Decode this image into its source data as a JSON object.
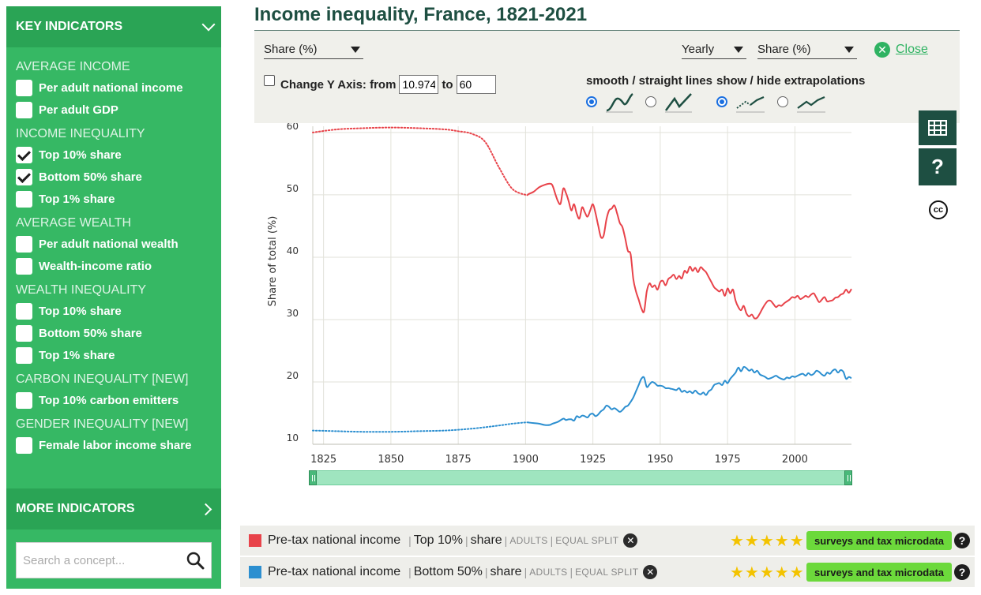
{
  "sidebar": {
    "header": "KEY INDICATORS",
    "sections": [
      {
        "title": "AVERAGE INCOME",
        "items": [
          {
            "label": "Per adult national income",
            "checked": false
          },
          {
            "label": "Per adult GDP",
            "checked": false
          }
        ]
      },
      {
        "title": "INCOME INEQUALITY",
        "items": [
          {
            "label": "Top 10% share",
            "checked": true
          },
          {
            "label": "Bottom 50% share",
            "checked": true
          },
          {
            "label": "Top 1% share",
            "checked": false
          }
        ]
      },
      {
        "title": "AVERAGE WEALTH",
        "items": [
          {
            "label": "Per adult national wealth",
            "checked": false
          },
          {
            "label": "Wealth-income ratio",
            "checked": false
          }
        ]
      },
      {
        "title": "WEALTH INEQUALITY",
        "items": [
          {
            "label": "Top 10% share",
            "checked": false
          },
          {
            "label": "Bottom 50% share",
            "checked": false
          },
          {
            "label": "Top 1% share",
            "checked": false
          }
        ]
      },
      {
        "title": "CARBON INEQUALITY [NEW]",
        "items": [
          {
            "label": "Top 10% carbon emitters",
            "checked": false
          }
        ]
      },
      {
        "title": "GENDER INEQUALITY [NEW]",
        "items": [
          {
            "label": "Female labor income share",
            "checked": false
          }
        ]
      }
    ],
    "more": "MORE INDICATORS",
    "search_placeholder": "Search a concept..."
  },
  "title": "Income inequality, France, 1821-2021",
  "controls": {
    "unit_select": "Share (%)",
    "frequency_select": "Yearly",
    "unit_select_2": "Share (%)",
    "close_label": "Close",
    "change_y_label": "Change Y Axis: from",
    "y_from": "10.974",
    "to_label": "to",
    "y_to": "60",
    "smooth_label": "smooth / straight lines",
    "extrap_label": "show / hide extrapolations",
    "smooth_selected": "smooth",
    "extrap_selected": "show"
  },
  "chart_data": {
    "type": "line",
    "title": "",
    "ylabel": "Share of total (%)",
    "xlabel": "",
    "xlim": [
      1821,
      2021
    ],
    "ylim": [
      10,
      61
    ],
    "x_ticks": [
      1825,
      1850,
      1875,
      1900,
      1925,
      1950,
      1975,
      2000
    ],
    "y_ticks": [
      10,
      20,
      30,
      40,
      50,
      60
    ],
    "grid": true,
    "series": [
      {
        "name": "Top 10%",
        "color": "#e8434a",
        "extrapolated": [
          [
            1821,
            60.0
          ],
          [
            1830,
            60.5
          ],
          [
            1840,
            60.7
          ],
          [
            1850,
            60.8
          ],
          [
            1860,
            60.7
          ],
          [
            1870,
            60.5
          ],
          [
            1875,
            60.2
          ],
          [
            1880,
            59.8
          ],
          [
            1885,
            58.5
          ],
          [
            1890,
            54.5
          ],
          [
            1895,
            51.0
          ],
          [
            1900,
            50.0
          ],
          [
            1901,
            50.1
          ]
        ],
        "points": [
          [
            1901,
            50.1
          ],
          [
            1903,
            50.5
          ],
          [
            1905,
            51.2
          ],
          [
            1907,
            51.6
          ],
          [
            1909,
            51.8
          ],
          [
            1910,
            51.5
          ],
          [
            1911,
            50.2
          ],
          [
            1912,
            49.0
          ],
          [
            1913,
            48.6
          ],
          [
            1914,
            51.0
          ],
          [
            1915,
            50.3
          ],
          [
            1916,
            49.0
          ],
          [
            1917,
            47.5
          ],
          [
            1918,
            48.5
          ],
          [
            1919,
            47.0
          ],
          [
            1920,
            46.2
          ],
          [
            1921,
            48.0
          ],
          [
            1922,
            47.2
          ],
          [
            1923,
            46.5
          ],
          [
            1924,
            47.5
          ],
          [
            1925,
            48.5
          ],
          [
            1926,
            47.0
          ],
          [
            1927,
            45.0
          ],
          [
            1928,
            43.2
          ],
          [
            1929,
            43.5
          ],
          [
            1930,
            46.0
          ],
          [
            1931,
            47.5
          ],
          [
            1932,
            47.8
          ],
          [
            1933,
            48.3
          ],
          [
            1934,
            47.0
          ],
          [
            1935,
            45.5
          ],
          [
            1936,
            44.8
          ],
          [
            1937,
            43.0
          ],
          [
            1938,
            41.0
          ],
          [
            1939,
            40.5
          ],
          [
            1940,
            36.5
          ],
          [
            1941,
            34.5
          ],
          [
            1942,
            33.2
          ],
          [
            1943,
            31.8
          ],
          [
            1944,
            31.3
          ],
          [
            1945,
            34.5
          ],
          [
            1946,
            35.8
          ],
          [
            1947,
            35.2
          ],
          [
            1948,
            35.5
          ],
          [
            1949,
            34.8
          ],
          [
            1950,
            36.0
          ],
          [
            1951,
            36.2
          ],
          [
            1952,
            35.5
          ],
          [
            1953,
            36.5
          ],
          [
            1954,
            36.8
          ],
          [
            1955,
            37.2
          ],
          [
            1956,
            36.5
          ],
          [
            1957,
            37.0
          ],
          [
            1958,
            36.6
          ],
          [
            1959,
            37.8
          ],
          [
            1960,
            37.5
          ],
          [
            1961,
            38.5
          ],
          [
            1962,
            37.8
          ],
          [
            1963,
            38.3
          ],
          [
            1964,
            37.6
          ],
          [
            1965,
            38.4
          ],
          [
            1966,
            38.0
          ],
          [
            1967,
            37.6
          ],
          [
            1968,
            36.8
          ],
          [
            1969,
            36.0
          ],
          [
            1970,
            35.2
          ],
          [
            1971,
            34.8
          ],
          [
            1972,
            34.5
          ],
          [
            1973,
            34.8
          ],
          [
            1974,
            33.8
          ],
          [
            1975,
            35.0
          ],
          [
            1976,
            34.2
          ],
          [
            1977,
            34.8
          ],
          [
            1978,
            33.0
          ],
          [
            1979,
            32.0
          ],
          [
            1980,
            31.5
          ],
          [
            1981,
            32.2
          ],
          [
            1982,
            31.0
          ],
          [
            1983,
            30.5
          ],
          [
            1984,
            30.8
          ],
          [
            1985,
            30.2
          ],
          [
            1986,
            30.3
          ],
          [
            1987,
            31.0
          ],
          [
            1988,
            31.8
          ],
          [
            1989,
            32.5
          ],
          [
            1990,
            33.0
          ],
          [
            1991,
            33.0
          ],
          [
            1992,
            32.5
          ],
          [
            1993,
            32.0
          ],
          [
            1994,
            32.3
          ],
          [
            1995,
            32.2
          ],
          [
            1996,
            32.6
          ],
          [
            1997,
            32.9
          ],
          [
            1998,
            33.2
          ],
          [
            1999,
            33.6
          ],
          [
            2000,
            33.5
          ],
          [
            2001,
            33.8
          ],
          [
            2002,
            33.3
          ],
          [
            2003,
            33.5
          ],
          [
            2004,
            33.8
          ],
          [
            2005,
            33.6
          ],
          [
            2006,
            34.0
          ],
          [
            2007,
            34.2
          ],
          [
            2008,
            33.5
          ],
          [
            2009,
            32.8
          ],
          [
            2010,
            33.2
          ],
          [
            2011,
            33.6
          ],
          [
            2012,
            32.9
          ],
          [
            2013,
            33.0
          ],
          [
            2014,
            33.1
          ],
          [
            2015,
            33.5
          ],
          [
            2016,
            33.6
          ],
          [
            2017,
            34.0
          ],
          [
            2018,
            34.2
          ],
          [
            2019,
            34.8
          ],
          [
            2020,
            34.3
          ],
          [
            2021,
            34.9
          ]
        ]
      },
      {
        "name": "Bottom 50%",
        "color": "#2c8fd0",
        "extrapolated": [
          [
            1821,
            12.2
          ],
          [
            1830,
            12.1
          ],
          [
            1840,
            12.0
          ],
          [
            1850,
            12.0
          ],
          [
            1860,
            12.1
          ],
          [
            1870,
            12.2
          ],
          [
            1880,
            12.5
          ],
          [
            1890,
            13.0
          ],
          [
            1895,
            13.3
          ],
          [
            1900,
            13.5
          ],
          [
            1901,
            13.5
          ]
        ],
        "points": [
          [
            1901,
            13.5
          ],
          [
            1903,
            13.4
          ],
          [
            1905,
            13.3
          ],
          [
            1907,
            13.1
          ],
          [
            1909,
            13.1
          ],
          [
            1910,
            13.3
          ],
          [
            1912,
            13.6
          ],
          [
            1914,
            14.1
          ],
          [
            1915,
            13.9
          ],
          [
            1916,
            14.0
          ],
          [
            1917,
            14.0
          ],
          [
            1918,
            13.8
          ],
          [
            1919,
            14.5
          ],
          [
            1920,
            14.3
          ],
          [
            1921,
            14.6
          ],
          [
            1922,
            14.5
          ],
          [
            1923,
            14.3
          ],
          [
            1924,
            14.8
          ],
          [
            1925,
            14.9
          ],
          [
            1926,
            14.5
          ],
          [
            1927,
            14.8
          ],
          [
            1928,
            15.3
          ],
          [
            1929,
            15.6
          ],
          [
            1930,
            16.2
          ],
          [
            1931,
            16.0
          ],
          [
            1932,
            15.6
          ],
          [
            1933,
            15.8
          ],
          [
            1934,
            15.5
          ],
          [
            1935,
            15.2
          ],
          [
            1936,
            15.5
          ],
          [
            1937,
            16.0
          ],
          [
            1938,
            16.2
          ],
          [
            1939,
            16.8
          ],
          [
            1940,
            17.5
          ],
          [
            1941,
            18.5
          ],
          [
            1942,
            19.5
          ],
          [
            1943,
            20.5
          ],
          [
            1944,
            20.7
          ],
          [
            1945,
            19.2
          ],
          [
            1946,
            19.6
          ],
          [
            1947,
            20.0
          ],
          [
            1948,
            19.8
          ],
          [
            1949,
            19.4
          ],
          [
            1950,
            19.4
          ],
          [
            1951,
            19.3
          ],
          [
            1952,
            19.0
          ],
          [
            1953,
            19.0
          ],
          [
            1954,
            18.9
          ],
          [
            1955,
            18.8
          ],
          [
            1956,
            18.7
          ],
          [
            1957,
            19.0
          ],
          [
            1958,
            18.4
          ],
          [
            1959,
            18.6
          ],
          [
            1960,
            18.3
          ],
          [
            1961,
            18.5
          ],
          [
            1962,
            18.2
          ],
          [
            1963,
            18.6
          ],
          [
            1964,
            18.2
          ],
          [
            1965,
            18.0
          ],
          [
            1966,
            18.3
          ],
          [
            1967,
            17.9
          ],
          [
            1968,
            18.5
          ],
          [
            1969,
            18.8
          ],
          [
            1970,
            19.5
          ],
          [
            1971,
            19.7
          ],
          [
            1972,
            19.8
          ],
          [
            1973,
            19.5
          ],
          [
            1974,
            20.2
          ],
          [
            1975,
            19.8
          ],
          [
            1976,
            20.5
          ],
          [
            1977,
            21.0
          ],
          [
            1978,
            21.5
          ],
          [
            1979,
            22.3
          ],
          [
            1980,
            21.7
          ],
          [
            1981,
            22.4
          ],
          [
            1982,
            22.2
          ],
          [
            1983,
            21.8
          ],
          [
            1984,
            22.0
          ],
          [
            1985,
            21.5
          ],
          [
            1986,
            21.8
          ],
          [
            1987,
            21.2
          ],
          [
            1988,
            21.0
          ],
          [
            1989,
            20.8
          ],
          [
            1990,
            20.5
          ],
          [
            1991,
            20.6
          ],
          [
            1992,
            20.8
          ],
          [
            1993,
            21.0
          ],
          [
            1994,
            20.7
          ],
          [
            1995,
            20.5
          ],
          [
            1996,
            20.4
          ],
          [
            1997,
            20.7
          ],
          [
            1998,
            20.6
          ],
          [
            1999,
            20.9
          ],
          [
            2000,
            20.8
          ],
          [
            2001,
            21.0
          ],
          [
            2002,
            21.2
          ],
          [
            2003,
            21.3
          ],
          [
            2004,
            21.0
          ],
          [
            2005,
            21.4
          ],
          [
            2006,
            21.1
          ],
          [
            2007,
            21.3
          ],
          [
            2008,
            21.8
          ],
          [
            2009,
            21.6
          ],
          [
            2010,
            21.2
          ],
          [
            2011,
            21.0
          ],
          [
            2012,
            21.5
          ],
          [
            2013,
            21.3
          ],
          [
            2014,
            21.8
          ],
          [
            2015,
            22.0
          ],
          [
            2016,
            21.5
          ],
          [
            2017,
            21.9
          ],
          [
            2018,
            21.6
          ],
          [
            2019,
            20.5
          ],
          [
            2020,
            20.8
          ],
          [
            2021,
            20.6
          ]
        ]
      }
    ]
  },
  "legend": [
    {
      "color": "#e8434a",
      "concept": "Pre-tax national income",
      "group": "Top 10%",
      "measure": "share",
      "pop": "ADULTS",
      "split": "EQUAL SPLIT",
      "stars": "★★★★★",
      "source": "surveys and tax microdata"
    },
    {
      "color": "#2c8fd0",
      "concept": "Pre-tax national income",
      "group": "Bottom 50%",
      "measure": "share",
      "pop": "ADULTS",
      "split": "EQUAL SPLIT",
      "stars": "★★★★★",
      "source": "surveys and tax microdata"
    }
  ],
  "tools": {
    "table_icon": "table-icon",
    "help_icon": "question-mark-icon",
    "help_glyph": "?",
    "cc_glyph": "cc"
  }
}
